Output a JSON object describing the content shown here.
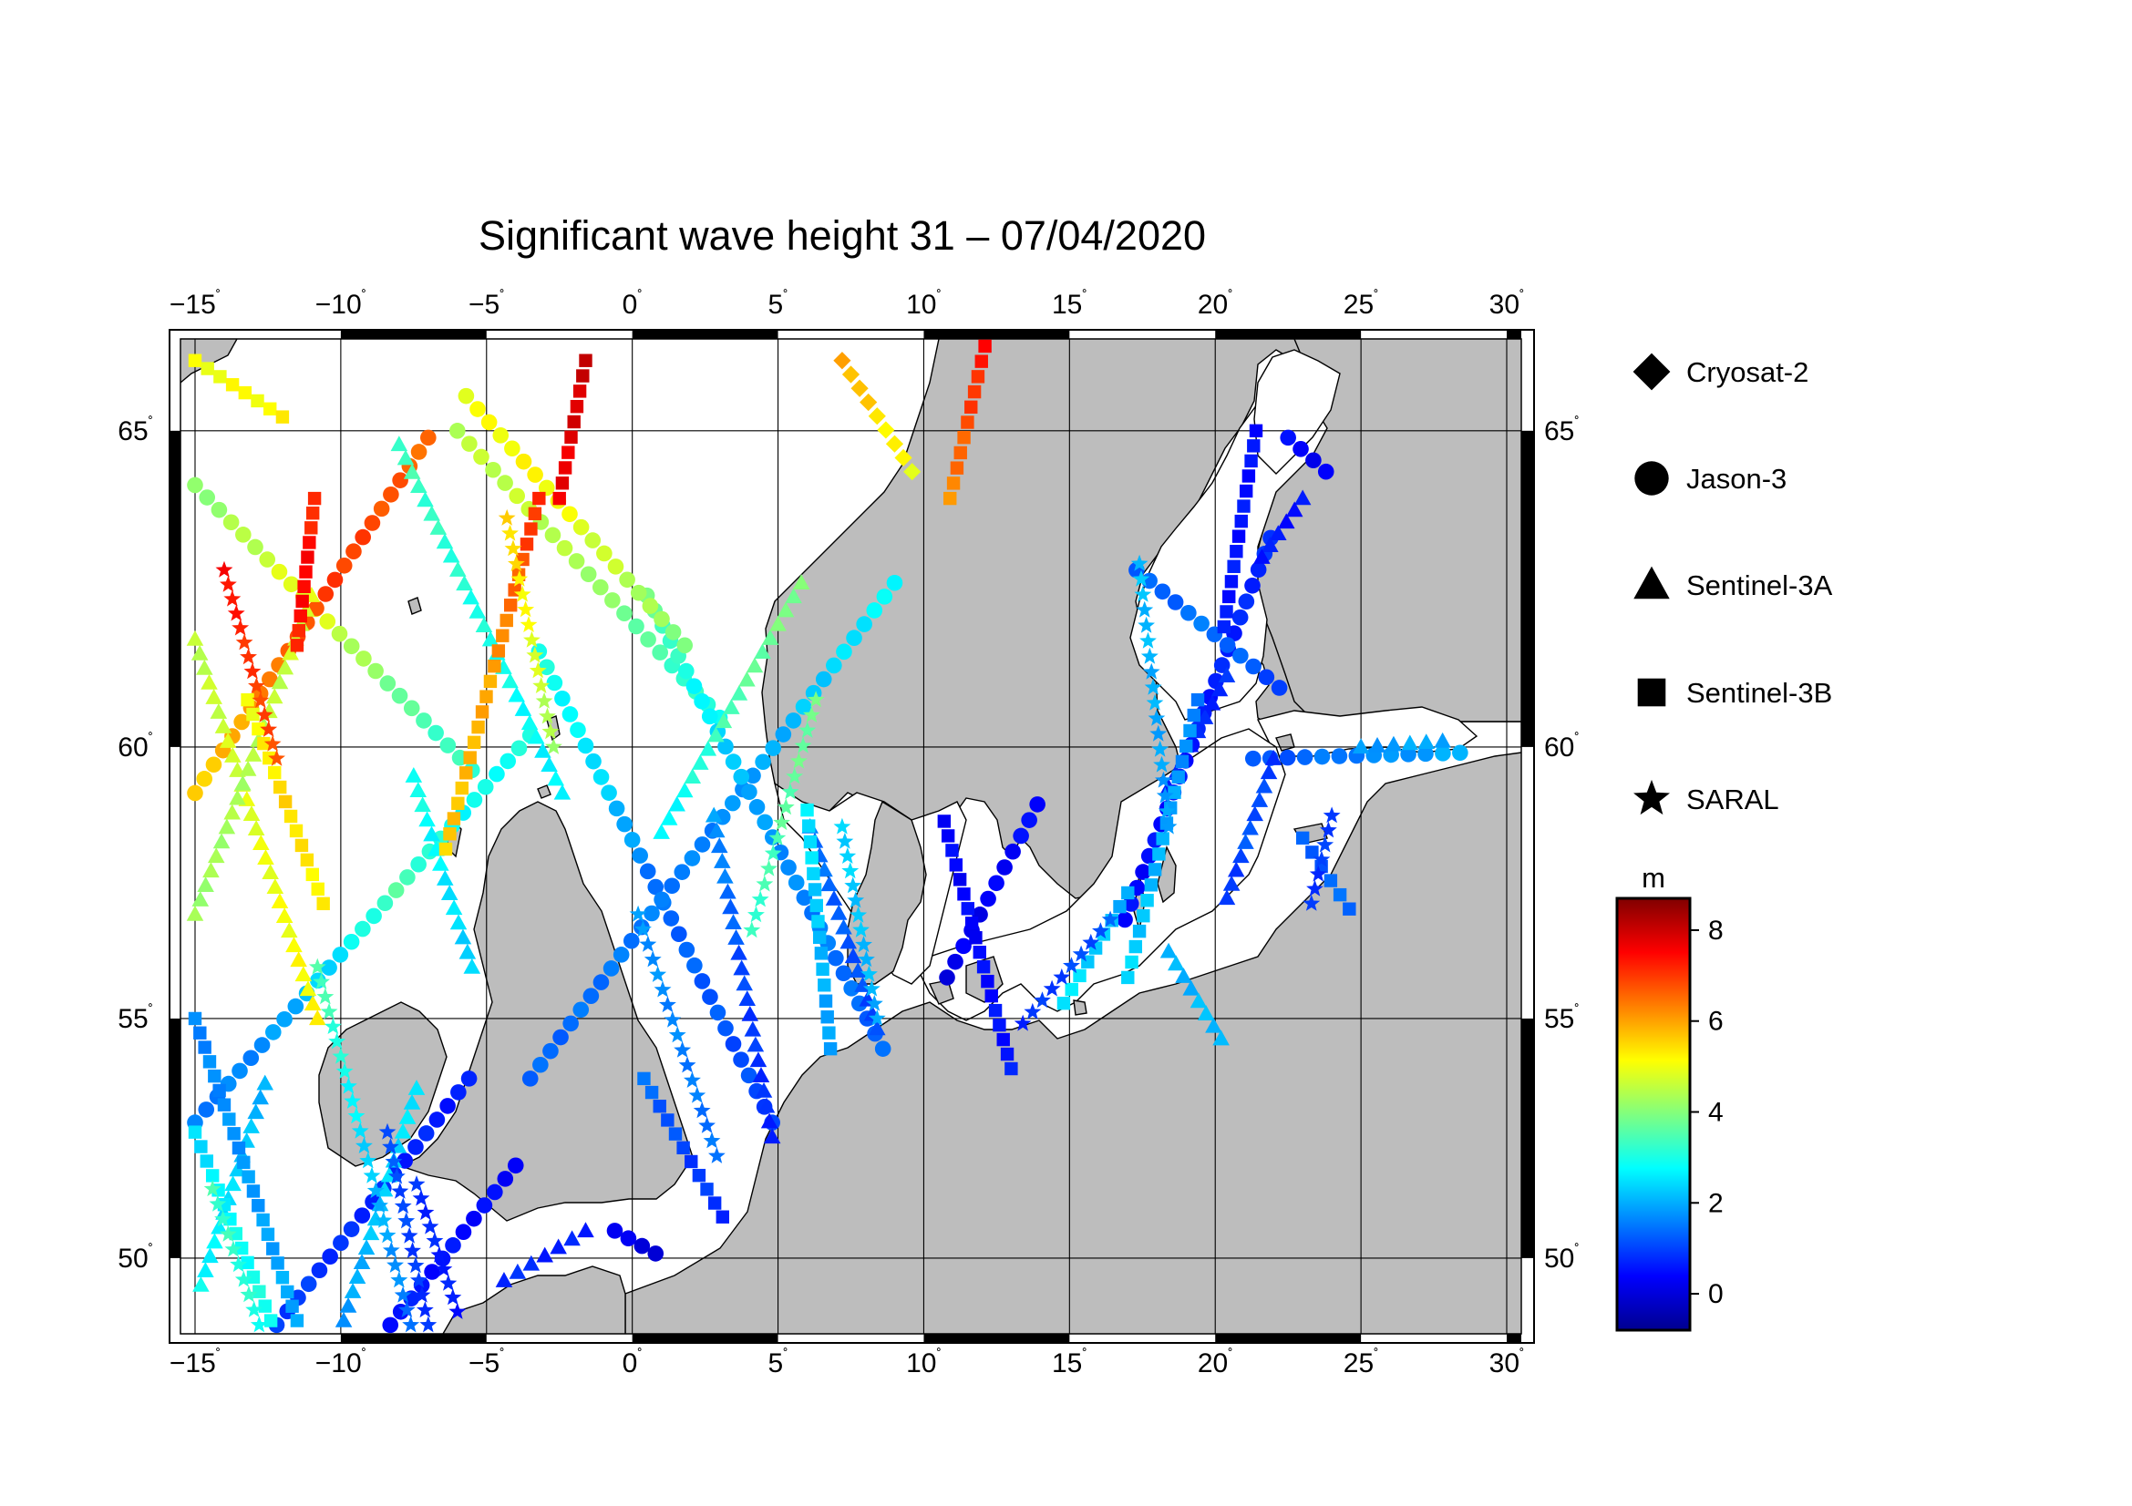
{
  "title": "Significant wave height 31 – 07/04/2020",
  "map": {
    "lon_range": [
      -15.5,
      30.5
    ],
    "lat_range": [
      48.3,
      66.3
    ],
    "lon_ticks": [
      -15,
      -10,
      -5,
      0,
      5,
      10,
      15,
      20,
      25,
      30
    ],
    "lon_tick_labels": [
      "−15",
      "−10",
      "−5",
      "0",
      "5",
      "10",
      "15",
      "20",
      "25",
      "30"
    ],
    "lat_ticks": [
      50,
      55,
      60,
      65
    ],
    "lat_tick_labels": [
      "50",
      "55",
      "60",
      "65"
    ],
    "degree_symbol": "˚",
    "grid": true,
    "land_color": "#bdbdbd",
    "sea_color": "#ffffff"
  },
  "legend": {
    "position": "right",
    "items": [
      {
        "label": "Cryosat-2",
        "symbol": "diamond"
      },
      {
        "label": "Jason-3",
        "symbol": "circle"
      },
      {
        "label": "Sentinel-3A",
        "symbol": "triangle"
      },
      {
        "label": "Sentinel-3B",
        "symbol": "square"
      },
      {
        "label": "SARAL",
        "symbol": "star"
      }
    ]
  },
  "colorbar": {
    "unit": "m",
    "range": [
      -0.8,
      8.7
    ],
    "tick_values": [
      0,
      2,
      4,
      6,
      8
    ],
    "tick_labels": [
      "0",
      "2",
      "4",
      "6",
      "8"
    ],
    "colormap": "jet"
  },
  "chart_data": {
    "type": "scatter",
    "title": "Significant wave height 31 – 07/04/2020",
    "xlabel": "",
    "ylabel": "",
    "xlim": [
      -15.5,
      30.5
    ],
    "ylim": [
      48.3,
      66.3
    ],
    "value_unit": "m",
    "series": [
      {
        "name": "Jason-3",
        "symbol": "circle",
        "tracks": [
          {
            "start": [
              -15.0,
              64.2
            ],
            "end": [
              -5.5,
              59.6
            ],
            "values": [
              4.0,
              4.5,
              5.0,
              4.3,
              3.5,
              3.2
            ]
          },
          {
            "start": [
              -15.0,
              59.2
            ],
            "end": [
              -7.0,
              64.9
            ],
            "values": [
              5.5,
              6.0,
              6.6,
              7.0,
              6.8,
              6.5
            ]
          },
          {
            "start": [
              -15.0,
              52.9
            ],
            "end": [
              -3.5,
              60.2
            ],
            "values": [
              1.5,
              1.7,
              2.4,
              3.5,
              2.8,
              3.0
            ]
          },
          {
            "start": [
              -6.0,
              65.0
            ],
            "end": [
              3.0,
              60.5
            ],
            "values": [
              4.5,
              4.6,
              4.3,
              3.5,
              3.0
            ]
          },
          {
            "start": [
              -3.2,
              61.6
            ],
            "end": [
              4.8,
              52.9
            ],
            "values": [
              3.0,
              2.5,
              1.4,
              1.2,
              1.0
            ]
          },
          {
            "start": [
              -3.5,
              53.8
            ],
            "end": [
              9.0,
              62.7
            ],
            "values": [
              1.3,
              1.5,
              1.6,
              2.2,
              2.8
            ]
          },
          {
            "start": [
              0.5,
              62.5
            ],
            "end": [
              8.6,
              54.4
            ],
            "values": [
              3.8,
              2.6,
              1.8,
              1.5,
              1.3
            ]
          },
          {
            "start": [
              -12.2,
              48.5
            ],
            "end": [
              -5.6,
              53.8
            ],
            "values": [
              1.0,
              0.8,
              0.7,
              0.6
            ]
          },
          {
            "start": [
              -8.3,
              48.5
            ],
            "end": [
              -4.0,
              52.0
            ],
            "values": [
              0.6,
              0.5,
              0.4
            ]
          },
          {
            "start": [
              -5.7,
              65.5
            ],
            "end": [
              1.8,
              61.7
            ],
            "values": [
              5.0,
              5.2,
              4.6,
              4.0
            ]
          },
          {
            "start": [
              -0.6,
              50.6
            ],
            "end": [
              0.8,
              50.1
            ],
            "values": [
              0.2,
              0.1
            ]
          },
          {
            "start": [
              13.9,
              59.0
            ],
            "end": [
              10.8,
              55.8
            ],
            "values": [
              0.5,
              0.3,
              0.2
            ]
          },
          {
            "start": [
              16.9,
              56.9
            ],
            "end": [
              21.9,
              63.4
            ],
            "values": [
              0.4,
              0.6,
              0.8
            ]
          },
          {
            "start": [
              17.3,
              62.9
            ],
            "end": [
              22.2,
              61.0
            ],
            "values": [
              1.2,
              1.5,
              1.0
            ]
          },
          {
            "start": [
              22.5,
              64.9
            ],
            "end": [
              23.8,
              64.4
            ],
            "values": [
              0.4,
              0.3
            ]
          },
          {
            "start": [
              21.3,
              59.8
            ],
            "end": [
              28.4,
              59.9
            ],
            "values": [
              1.1,
              1.6,
              2.0
            ]
          }
        ]
      },
      {
        "name": "Sentinel-3A",
        "symbol": "triangle",
        "tracks": [
          {
            "start": [
              -15.0,
              61.8
            ],
            "end": [
              -10.8,
              55.0
            ],
            "values": [
              4.5,
              4.9,
              5.2
            ]
          },
          {
            "start": [
              -15.0,
              57.0
            ],
            "end": [
              -11.0,
              62.5
            ],
            "values": [
              4.2,
              4.4,
              4.8
            ]
          },
          {
            "start": [
              -8.0,
              64.8
            ],
            "end": [
              -2.4,
              59.2
            ],
            "values": [
              3.4,
              3.0,
              2.6
            ]
          },
          {
            "start": [
              -7.5,
              59.5
            ],
            "end": [
              -5.5,
              56.0
            ],
            "values": [
              3.0,
              2.6,
              2.3
            ]
          },
          {
            "start": [
              2.8,
              58.8
            ],
            "end": [
              4.8,
              52.6
            ],
            "values": [
              1.8,
              1.0,
              0.7
            ]
          },
          {
            "start": [
              1.0,
              58.5
            ],
            "end": [
              5.8,
              62.7
            ],
            "values": [
              2.6,
              3.5,
              4.0
            ]
          },
          {
            "start": [
              6.1,
              58.6
            ],
            "end": [
              8.4,
              54.8
            ],
            "values": [
              1.5,
              1.2,
              1.0
            ]
          },
          {
            "start": [
              -9.9,
              48.6
            ],
            "end": [
              -7.4,
              53.6
            ],
            "values": [
              1.8,
              2.3,
              2.6
            ]
          },
          {
            "start": [
              -14.8,
              49.4
            ],
            "end": [
              -12.6,
              53.7
            ],
            "values": [
              2.8,
              2.4,
              2.0
            ]
          },
          {
            "start": [
              -4.4,
              49.5
            ],
            "end": [
              -1.6,
              50.6
            ],
            "values": [
              0.8,
              0.7,
              0.6
            ]
          },
          {
            "start": [
              20.4,
              57.3
            ],
            "end": [
              22.0,
              59.8
            ],
            "values": [
              0.8,
              1.2,
              0.9
            ]
          },
          {
            "start": [
              18.4,
              56.3
            ],
            "end": [
              20.2,
              54.6
            ],
            "values": [
              2.0,
              2.2
            ]
          },
          {
            "start": [
              18.4,
              59.3
            ],
            "end": [
              20.4,
              61.2
            ],
            "values": [
              0.6,
              0.8
            ]
          },
          {
            "start": [
              23.0,
              64.0
            ],
            "end": [
              21.6,
              63.1
            ],
            "values": [
              0.5,
              0.6
            ]
          },
          {
            "start": [
              25.0,
              60.0
            ],
            "end": [
              27.8,
              60.1
            ],
            "values": [
              1.8,
              2.0
            ]
          }
        ]
      },
      {
        "name": "Sentinel-3B",
        "symbol": "square",
        "tracks": [
          {
            "start": [
              -15.0,
              55.0
            ],
            "end": [
              -11.5,
              48.6
            ],
            "values": [
              1.6,
              1.8,
              2.0
            ]
          },
          {
            "start": [
              -15.0,
              52.7
            ],
            "end": [
              -12.4,
              48.6
            ],
            "values": [
              2.4,
              2.8,
              3.0
            ]
          },
          {
            "start": [
              -13.2,
              60.8
            ],
            "end": [
              -10.6,
              57.2
            ],
            "values": [
              5.0,
              5.5,
              5.2
            ]
          },
          {
            "start": [
              -11.5,
              61.7
            ],
            "end": [
              -10.9,
              64.0
            ],
            "values": [
              7.2,
              7.6,
              7.0
            ]
          },
          {
            "start": [
              -6.4,
              58.2
            ],
            "end": [
              -3.2,
              64.0
            ],
            "values": [
              5.6,
              6.0,
              7.2
            ]
          },
          {
            "start": [
              -2.5,
              64.0
            ],
            "end": [
              -1.6,
              66.0
            ],
            "values": [
              7.6,
              8.0
            ]
          },
          {
            "start": [
              0.4,
              53.8
            ],
            "end": [
              3.1,
              50.9
            ],
            "values": [
              1.4,
              1.0,
              0.8
            ]
          },
          {
            "start": [
              6.0,
              58.9
            ],
            "end": [
              6.8,
              54.4
            ],
            "values": [
              2.6,
              2.2,
              1.8
            ]
          },
          {
            "start": [
              10.9,
              64.0
            ],
            "end": [
              12.1,
              66.2
            ],
            "values": [
              6.2,
              7.4
            ]
          },
          {
            "start": [
              10.7,
              58.7
            ],
            "end": [
              13.0,
              54.0
            ],
            "values": [
              0.4,
              0.4,
              0.6
            ]
          },
          {
            "start": [
              17.0,
              55.8
            ],
            "end": [
              19.4,
              60.8
            ],
            "values": [
              2.4,
              2.0,
              1.6
            ]
          },
          {
            "start": [
              14.8,
              55.3
            ],
            "end": [
              17.0,
              57.4
            ],
            "values": [
              2.6,
              2.0
            ]
          },
          {
            "start": [
              23.0,
              58.4
            ],
            "end": [
              24.6,
              57.1
            ],
            "values": [
              1.2,
              1.4
            ]
          },
          {
            "start": [
              20.3,
              62.0
            ],
            "end": [
              21.4,
              65.0
            ],
            "values": [
              0.6,
              0.5
            ]
          },
          {
            "start": [
              -15.0,
              66.0
            ],
            "end": [
              -12.0,
              65.2
            ],
            "values": [
              5.0,
              5.2
            ]
          }
        ]
      },
      {
        "name": "SARAL",
        "symbol": "star",
        "tracks": [
          {
            "start": [
              -14.0,
              62.9
            ],
            "end": [
              -12.2,
              59.8
            ],
            "values": [
              7.5,
              7.0,
              6.8
            ]
          },
          {
            "start": [
              -10.8,
              56.0
            ],
            "end": [
              -7.6,
              48.5
            ],
            "values": [
              3.6,
              2.4,
              1.4
            ]
          },
          {
            "start": [
              -14.4,
              51.5
            ],
            "end": [
              -12.8,
              48.5
            ],
            "values": [
              3.4,
              3.0
            ]
          },
          {
            "start": [
              -2.7,
              60.0
            ],
            "end": [
              -4.3,
              63.7
            ],
            "values": [
              4.2,
              5.0,
              5.6
            ]
          },
          {
            "start": [
              0.2,
              57.0
            ],
            "end": [
              2.9,
              52.2
            ],
            "values": [
              1.8,
              1.6,
              1.4
            ]
          },
          {
            "start": [
              4.1,
              56.7
            ],
            "end": [
              6.3,
              60.8
            ],
            "values": [
              3.2,
              3.6,
              3.8
            ]
          },
          {
            "start": [
              7.2,
              58.6
            ],
            "end": [
              8.4,
              55.0
            ],
            "values": [
              2.4,
              2.0
            ]
          },
          {
            "start": [
              -8.4,
              52.7
            ],
            "end": [
              -7.0,
              48.5
            ],
            "values": [
              1.2,
              0.8
            ]
          },
          {
            "start": [
              -6.0,
              48.8
            ],
            "end": [
              -7.4,
              51.6
            ],
            "values": [
              0.6,
              0.8
            ]
          },
          {
            "start": [
              13.4,
              54.9
            ],
            "end": [
              16.4,
              56.9
            ],
            "values": [
              0.8,
              1.2
            ]
          },
          {
            "start": [
              18.4,
              58.6
            ],
            "end": [
              17.4,
              63.0
            ],
            "values": [
              1.8,
              2.2
            ]
          },
          {
            "start": [
              23.3,
              57.2
            ],
            "end": [
              24.0,
              58.8
            ],
            "values": [
              0.8,
              1.0
            ]
          }
        ]
      },
      {
        "name": "Cryosat-2",
        "symbol": "diamond",
        "tracks": [
          {
            "start": [
              7.2,
              66.0
            ],
            "end": [
              9.6,
              64.4
            ],
            "values": [
              6.0,
              5.4,
              5.0
            ]
          }
        ]
      }
    ]
  }
}
